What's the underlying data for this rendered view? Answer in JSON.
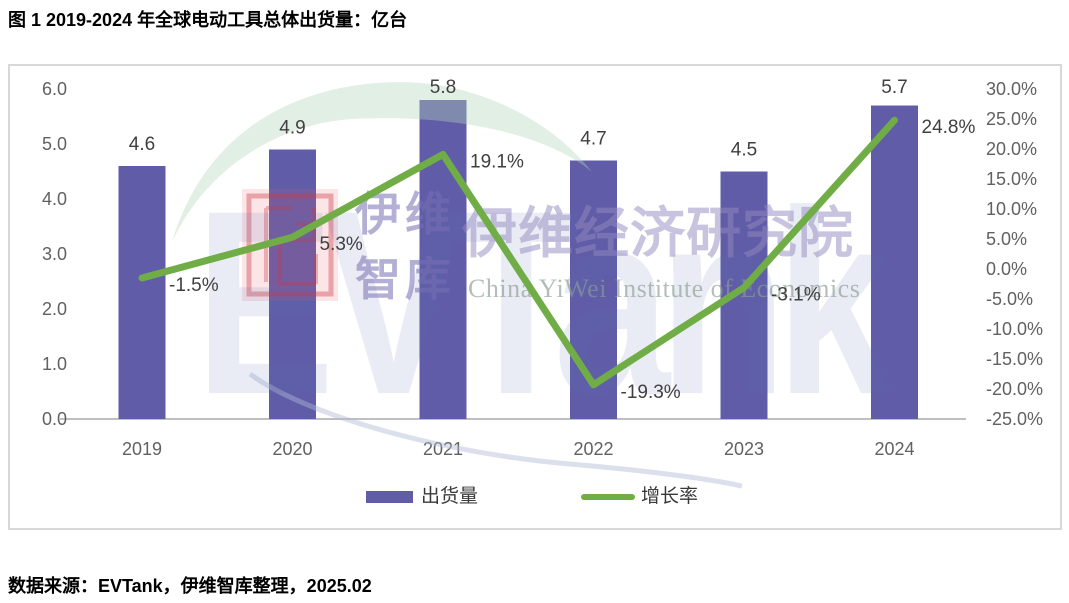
{
  "title": "图 1 2019-2024 年全球电动工具总体出货量：亿台",
  "source": "数据来源：EVTank，伊维智库整理，2025.02",
  "colors": {
    "bar": "#605CA8",
    "line": "#70AD47",
    "axis_text": "#616161",
    "data_label": "#404040",
    "axis_line": "#BFBFBF",
    "frame_border": "#D8D8D8"
  },
  "legend": [
    {
      "label": "出货量"
    },
    {
      "label": "增长率"
    }
  ],
  "watermark": {
    "logo": "EVTank",
    "seal_line1": "伊维",
    "seal_line2": "智库",
    "cn_title": "伊维经济研究院",
    "en_title": "China YiWei Institute of Economics"
  },
  "chart_data": {
    "type": "bar+line combo",
    "title": "图 1 2019-2024 年全球电动工具总体出货量：亿台",
    "categories": [
      "2019",
      "2020",
      "2021",
      "2022",
      "2023",
      "2024"
    ],
    "series": [
      {
        "name": "出货量",
        "type": "bar",
        "axis": "left",
        "unit": "亿台",
        "values": [
          4.6,
          4.9,
          5.8,
          4.7,
          4.5,
          5.7
        ],
        "data_labels": [
          "4.6",
          "4.9",
          "5.8",
          "4.7",
          "4.5",
          "5.7"
        ]
      },
      {
        "name": "增长率",
        "type": "line",
        "axis": "right",
        "unit": "%",
        "values": [
          -1.5,
          5.3,
          19.1,
          -19.3,
          -3.1,
          24.8
        ],
        "data_labels": [
          "-1.5%",
          "5.3%",
          "19.1%",
          "-19.3%",
          "-3.1%",
          "24.8%"
        ]
      }
    ],
    "left_axis": {
      "min": 0,
      "max": 6,
      "ticks": [
        "6.0",
        "5.0",
        "4.0",
        "3.0",
        "2.0",
        "1.0",
        "0.0"
      ]
    },
    "right_axis": {
      "min": -25,
      "max": 30,
      "ticks": [
        "30.0%",
        "25.0%",
        "20.0%",
        "15.0%",
        "10.0%",
        "5.0%",
        "0.0%",
        "-5.0%",
        "-10.0%",
        "-15.0%",
        "-20.0%",
        "-25.0%"
      ]
    },
    "grid": "none",
    "legend_position": "bottom"
  }
}
